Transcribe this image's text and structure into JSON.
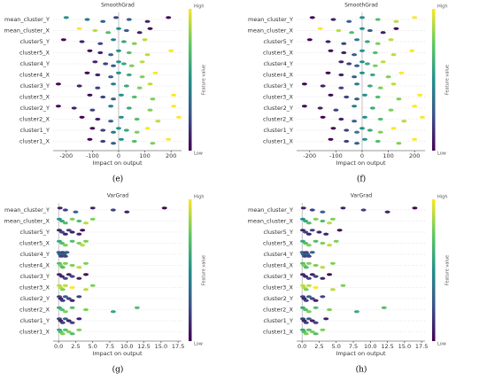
{
  "chart_data": [
    {
      "type": "beeswarm",
      "title": "SmoothGrad",
      "caption": "(e)",
      "xlabel": "Impact on output",
      "colorbar": {
        "label": "Feature value",
        "high": "High",
        "low": "Low"
      },
      "xlim": [
        -250,
        240
      ],
      "xticks": [
        -200,
        -100,
        0,
        100,
        200
      ],
      "series": [
        {
          "name": "mean_cluster_Y",
          "values": [
            -200,
            -120,
            -60,
            -10,
            40,
            110,
            190
          ],
          "feature_values": [
            0.5,
            0.4,
            0.3,
            0.2,
            0.3,
            0.1,
            0.0
          ]
        },
        {
          "name": "mean_cluster_X",
          "values": [
            -150,
            -90,
            -40,
            0,
            30,
            80,
            120
          ],
          "feature_values": [
            1,
            0.9,
            0.7,
            0.5,
            0.3,
            0.1,
            0
          ]
        },
        {
          "name": "cluster5_Y",
          "values": [
            -210,
            -140,
            -70,
            -20,
            20,
            60,
            100
          ],
          "feature_values": [
            0,
            0.1,
            0.2,
            0.4,
            0.6,
            0.8,
            0.9
          ]
        },
        {
          "name": "cluster5_X",
          "values": [
            -110,
            -70,
            -30,
            0,
            40,
            110,
            200
          ],
          "feature_values": [
            0,
            0.1,
            0.3,
            0.5,
            0.7,
            0.9,
            1
          ]
        },
        {
          "name": "cluster4_Y",
          "values": [
            -90,
            -50,
            -20,
            0,
            20,
            50,
            90
          ],
          "feature_values": [
            0.1,
            0.2,
            0.3,
            0.5,
            0.6,
            0.8,
            0.9
          ]
        },
        {
          "name": "cluster4_X",
          "values": [
            -120,
            -80,
            -30,
            0,
            40,
            90,
            140
          ],
          "feature_values": [
            0,
            0.1,
            0.3,
            0.5,
            0.6,
            0.8,
            1
          ]
        },
        {
          "name": "cluster3_Y",
          "values": [
            -230,
            -150,
            -80,
            -20,
            30,
            80,
            120
          ],
          "feature_values": [
            0,
            0.1,
            0.2,
            0.4,
            0.6,
            0.8,
            0.9
          ]
        },
        {
          "name": "cluster3_X",
          "values": [
            -110,
            -60,
            -20,
            10,
            60,
            130,
            210
          ],
          "feature_values": [
            0,
            0.2,
            0.3,
            0.5,
            0.7,
            0.8,
            1
          ]
        },
        {
          "name": "cluster2_Y",
          "values": [
            -230,
            -170,
            -100,
            -30,
            40,
            120,
            210
          ],
          "feature_values": [
            0,
            0.1,
            0.2,
            0.4,
            0.6,
            0.8,
            1
          ]
        },
        {
          "name": "cluster2_X",
          "values": [
            -140,
            -80,
            -30,
            10,
            70,
            150,
            230
          ],
          "feature_values": [
            0,
            0.1,
            0.3,
            0.5,
            0.7,
            0.9,
            1
          ]
        },
        {
          "name": "cluster1_Y",
          "values": [
            -100,
            -60,
            -20,
            0,
            30,
            70,
            110
          ],
          "feature_values": [
            0,
            0.2,
            0.4,
            0.5,
            0.6,
            0.8,
            1
          ]
        },
        {
          "name": "cluster1_X",
          "values": [
            -110,
            -60,
            -20,
            10,
            60,
            130,
            190
          ],
          "feature_values": [
            0,
            0.2,
            0.3,
            0.5,
            0.7,
            0.8,
            1
          ]
        }
      ]
    },
    {
      "type": "beeswarm",
      "title": "SmoothGrad",
      "caption": "(f)",
      "xlabel": "Impact on output",
      "colorbar": {
        "label": "Feature value",
        "high": "High",
        "low": "Low"
      },
      "xlim": [
        -250,
        240
      ],
      "xticks": [
        -200,
        -100,
        0,
        100,
        200
      ],
      "series": [
        {
          "name": "mean_cluster_Y",
          "values": [
            -190,
            -110,
            -50,
            0,
            60,
            130,
            200
          ],
          "feature_values": [
            0,
            0.1,
            0.3,
            0.5,
            0.7,
            0.9,
            1
          ]
        },
        {
          "name": "mean_cluster_X",
          "values": [
            -160,
            -90,
            -40,
            0,
            30,
            80,
            130
          ],
          "feature_values": [
            1,
            0.9,
            0.7,
            0.5,
            0.3,
            0.1,
            0
          ]
        },
        {
          "name": "cluster5_Y",
          "values": [
            -200,
            -130,
            -70,
            -20,
            20,
            60,
            110
          ],
          "feature_values": [
            0,
            0.1,
            0.2,
            0.4,
            0.6,
            0.8,
            0.9
          ]
        },
        {
          "name": "cluster5_X",
          "values": [
            -120,
            -70,
            -30,
            0,
            50,
            120,
            190
          ],
          "feature_values": [
            0,
            0.1,
            0.3,
            0.5,
            0.7,
            0.9,
            1
          ]
        },
        {
          "name": "cluster4_Y",
          "values": [
            -80,
            -50,
            -20,
            0,
            20,
            50,
            80
          ],
          "feature_values": [
            0.1,
            0.2,
            0.3,
            0.5,
            0.6,
            0.8,
            0.9
          ]
        },
        {
          "name": "cluster4_X",
          "values": [
            -130,
            -80,
            -30,
            0,
            40,
            100,
            150
          ],
          "feature_values": [
            0,
            0.1,
            0.3,
            0.5,
            0.6,
            0.8,
            1
          ]
        },
        {
          "name": "cluster3_Y",
          "values": [
            -220,
            -150,
            -80,
            -20,
            30,
            70,
            120
          ],
          "feature_values": [
            0,
            0.1,
            0.2,
            0.4,
            0.6,
            0.8,
            0.9
          ]
        },
        {
          "name": "cluster3_X",
          "values": [
            -120,
            -60,
            -20,
            10,
            60,
            140,
            220
          ],
          "feature_values": [
            0,
            0.2,
            0.3,
            0.5,
            0.7,
            0.8,
            1
          ]
        },
        {
          "name": "cluster2_Y",
          "values": [
            -220,
            -160,
            -100,
            -30,
            40,
            110,
            200
          ],
          "feature_values": [
            0,
            0.1,
            0.2,
            0.4,
            0.6,
            0.8,
            1
          ]
        },
        {
          "name": "cluster2_X",
          "values": [
            -150,
            -80,
            -30,
            10,
            70,
            160,
            230
          ],
          "feature_values": [
            0,
            0.1,
            0.3,
            0.5,
            0.7,
            0.9,
            1
          ]
        },
        {
          "name": "cluster1_Y",
          "values": [
            -110,
            -60,
            -20,
            0,
            30,
            70,
            120
          ],
          "feature_values": [
            0,
            0.2,
            0.4,
            0.5,
            0.6,
            0.8,
            1
          ]
        },
        {
          "name": "cluster1_X",
          "values": [
            -120,
            -60,
            -20,
            10,
            60,
            140,
            200
          ],
          "feature_values": [
            0,
            0.2,
            0.3,
            0.5,
            0.7,
            0.8,
            1
          ]
        }
      ]
    },
    {
      "type": "beeswarm",
      "title": "VarGrad",
      "caption": "(g)",
      "xlabel": "Impact on output",
      "colorbar": {
        "label": "Feature value",
        "high": "High",
        "low": "Low"
      },
      "xlim": [
        -0.8,
        18
      ],
      "xticks": [
        {
          "value": 0,
          "label": "0.0"
        },
        {
          "value": 2.5,
          "label": "2.5"
        },
        {
          "value": 5,
          "label": "5.0"
        },
        {
          "value": 7.5,
          "label": "7.5"
        },
        {
          "value": 10,
          "label": "10.0"
        },
        {
          "value": 12.5,
          "label": "12.5"
        },
        {
          "value": 15,
          "label": "15.0"
        },
        {
          "value": 17.5,
          "label": "17.5"
        }
      ],
      "series": [
        {
          "name": "mean_cluster_Y",
          "values": [
            0.2,
            1,
            2.5,
            5,
            8,
            10,
            15.5
          ],
          "feature_values": [
            0.1,
            0.2,
            0.3,
            0.1,
            0.2,
            0.1,
            0.0
          ]
        },
        {
          "name": "mean_cluster_X",
          "values": [
            0.1,
            0.5,
            1,
            2,
            3,
            4,
            5
          ],
          "feature_values": [
            0.5,
            0.6,
            0.7,
            0.8,
            0.7,
            0.9,
            0.8
          ]
        },
        {
          "name": "cluster5_Y",
          "values": [
            0.1,
            0.5,
            1,
            1.5,
            2,
            3,
            3.5
          ],
          "feature_values": [
            0.1,
            0.2,
            0.1,
            0.2,
            0.1,
            0.1,
            0.0
          ]
        },
        {
          "name": "cluster5_X",
          "values": [
            0.1,
            0.5,
            1,
            2,
            3,
            3.5,
            4
          ],
          "feature_values": [
            0.6,
            0.7,
            0.8,
            0.7,
            0.8,
            0.9,
            0.8
          ]
        },
        {
          "name": "cluster4_Y",
          "values": [
            0.05,
            0.2,
            0.4,
            0.6,
            0.8,
            1,
            1.2
          ],
          "feature_values": [
            0.3,
            0.3,
            0.2,
            0.2,
            0.3,
            0.2,
            0.3
          ]
        },
        {
          "name": "cluster4_X",
          "values": [
            0.1,
            0.3,
            0.6,
            1,
            2,
            3,
            4
          ],
          "feature_values": [
            0.7,
            0.8,
            0.7,
            0.8,
            0.8,
            0.9,
            0.8
          ]
        },
        {
          "name": "cluster3_Y",
          "values": [
            0.1,
            0.5,
            1,
            1.5,
            2,
            3,
            4
          ],
          "feature_values": [
            0.1,
            0.1,
            0.2,
            0.1,
            0.2,
            0.1,
            0.0
          ]
        },
        {
          "name": "cluster3_X",
          "values": [
            0.1,
            0.3,
            0.6,
            1,
            2,
            4,
            5
          ],
          "feature_values": [
            0.9,
            0.9,
            0.8,
            0.9,
            1,
            0.9,
            0.8
          ]
        },
        {
          "name": "cluster2_Y",
          "values": [
            0.1,
            0.3,
            0.6,
            1,
            1.5,
            2,
            3
          ],
          "feature_values": [
            0.2,
            0.1,
            0.2,
            0.3,
            0.2,
            0.1,
            0.2
          ]
        },
        {
          "name": "cluster2_X",
          "values": [
            0.1,
            0.5,
            1,
            2,
            4,
            8,
            11.5
          ],
          "feature_values": [
            0.6,
            0.7,
            0.8,
            0.7,
            0.8,
            0.6,
            0.7
          ]
        },
        {
          "name": "cluster1_Y",
          "values": [
            0.1,
            0.3,
            0.6,
            1,
            1.5,
            2,
            3
          ],
          "feature_values": [
            0.2,
            0.1,
            0.2,
            0.3,
            0.1,
            0.2,
            0.1
          ]
        },
        {
          "name": "cluster1_X",
          "values": [
            0.1,
            0.3,
            0.6,
            1,
            1.5,
            2,
            3
          ],
          "feature_values": [
            0.6,
            0.7,
            0.8,
            0.7,
            0.8,
            0.7,
            0.8
          ]
        }
      ]
    },
    {
      "type": "beeswarm",
      "title": "VarGrad",
      "caption": "(h)",
      "xlabel": "Impact on output",
      "colorbar": {
        "label": "Feature value",
        "high": "High",
        "low": "Low"
      },
      "xlim": [
        -0.8,
        18
      ],
      "xticks": [
        {
          "value": 0,
          "label": "0.0"
        },
        {
          "value": 2.5,
          "label": "2.5"
        },
        {
          "value": 5,
          "label": "5.0"
        },
        {
          "value": 7.5,
          "label": "7.5"
        },
        {
          "value": 10,
          "label": "10.0"
        },
        {
          "value": 12.5,
          "label": "12.5"
        },
        {
          "value": 15,
          "label": "15.0"
        },
        {
          "value": 17.5,
          "label": "17.5"
        }
      ],
      "series": [
        {
          "name": "mean_cluster_Y",
          "values": [
            0.2,
            1.5,
            3,
            6,
            9,
            12.5,
            16.5
          ],
          "feature_values": [
            0.1,
            0.2,
            0.3,
            0.1,
            0.2,
            0.1,
            0.0
          ]
        },
        {
          "name": "mean_cluster_X",
          "values": [
            0.1,
            0.5,
            1,
            2,
            3,
            4,
            4.5
          ],
          "feature_values": [
            0.5,
            0.6,
            0.7,
            0.8,
            0.7,
            0.9,
            0.8
          ]
        },
        {
          "name": "cluster5_Y",
          "values": [
            0.1,
            0.5,
            1,
            1.5,
            2.5,
            3.5,
            5.5
          ],
          "feature_values": [
            0.1,
            0.2,
            0.1,
            0.2,
            0.1,
            0.1,
            0.0
          ]
        },
        {
          "name": "cluster5_X",
          "values": [
            0.1,
            0.5,
            1,
            2,
            3,
            4,
            5
          ],
          "feature_values": [
            0.6,
            0.7,
            0.8,
            0.7,
            0.8,
            0.9,
            0.8
          ]
        },
        {
          "name": "cluster4_Y",
          "values": [
            0.05,
            0.2,
            0.4,
            0.6,
            0.8,
            1,
            1.5
          ],
          "feature_values": [
            0.3,
            0.3,
            0.2,
            0.2,
            0.3,
            0.2,
            0.3
          ]
        },
        {
          "name": "cluster4_X",
          "values": [
            0.1,
            0.3,
            0.6,
            1,
            2,
            3,
            4.5
          ],
          "feature_values": [
            0.7,
            0.8,
            0.7,
            0.8,
            0.8,
            0.9,
            0.8
          ]
        },
        {
          "name": "cluster3_Y",
          "values": [
            0.1,
            0.5,
            1,
            1.5,
            2,
            3,
            4
          ],
          "feature_values": [
            0.1,
            0.1,
            0.2,
            0.1,
            0.2,
            0.1,
            0.0
          ]
        },
        {
          "name": "cluster3_X",
          "values": [
            0.1,
            0.3,
            0.6,
            1,
            2,
            4.5,
            6
          ],
          "feature_values": [
            0.9,
            0.9,
            0.8,
            0.9,
            1,
            0.9,
            0.8
          ]
        },
        {
          "name": "cluster2_Y",
          "values": [
            0.1,
            0.3,
            0.6,
            1,
            1.5,
            2,
            3
          ],
          "feature_values": [
            0.2,
            0.1,
            0.2,
            0.3,
            0.2,
            0.1,
            0.2
          ]
        },
        {
          "name": "cluster2_X",
          "values": [
            0.1,
            0.5,
            1,
            2,
            4,
            8,
            12
          ],
          "feature_values": [
            0.6,
            0.7,
            0.8,
            0.7,
            0.8,
            0.6,
            0.7
          ]
        },
        {
          "name": "cluster1_Y",
          "values": [
            0.1,
            0.3,
            0.6,
            1,
            1.5,
            2,
            3.5
          ],
          "feature_values": [
            0.2,
            0.1,
            0.2,
            0.3,
            0.1,
            0.2,
            0.1
          ]
        },
        {
          "name": "cluster1_X",
          "values": [
            0.1,
            0.3,
            0.6,
            1,
            1.5,
            2,
            3
          ],
          "feature_values": [
            0.6,
            0.7,
            0.8,
            0.7,
            0.8,
            0.7,
            0.8
          ]
        }
      ]
    }
  ]
}
